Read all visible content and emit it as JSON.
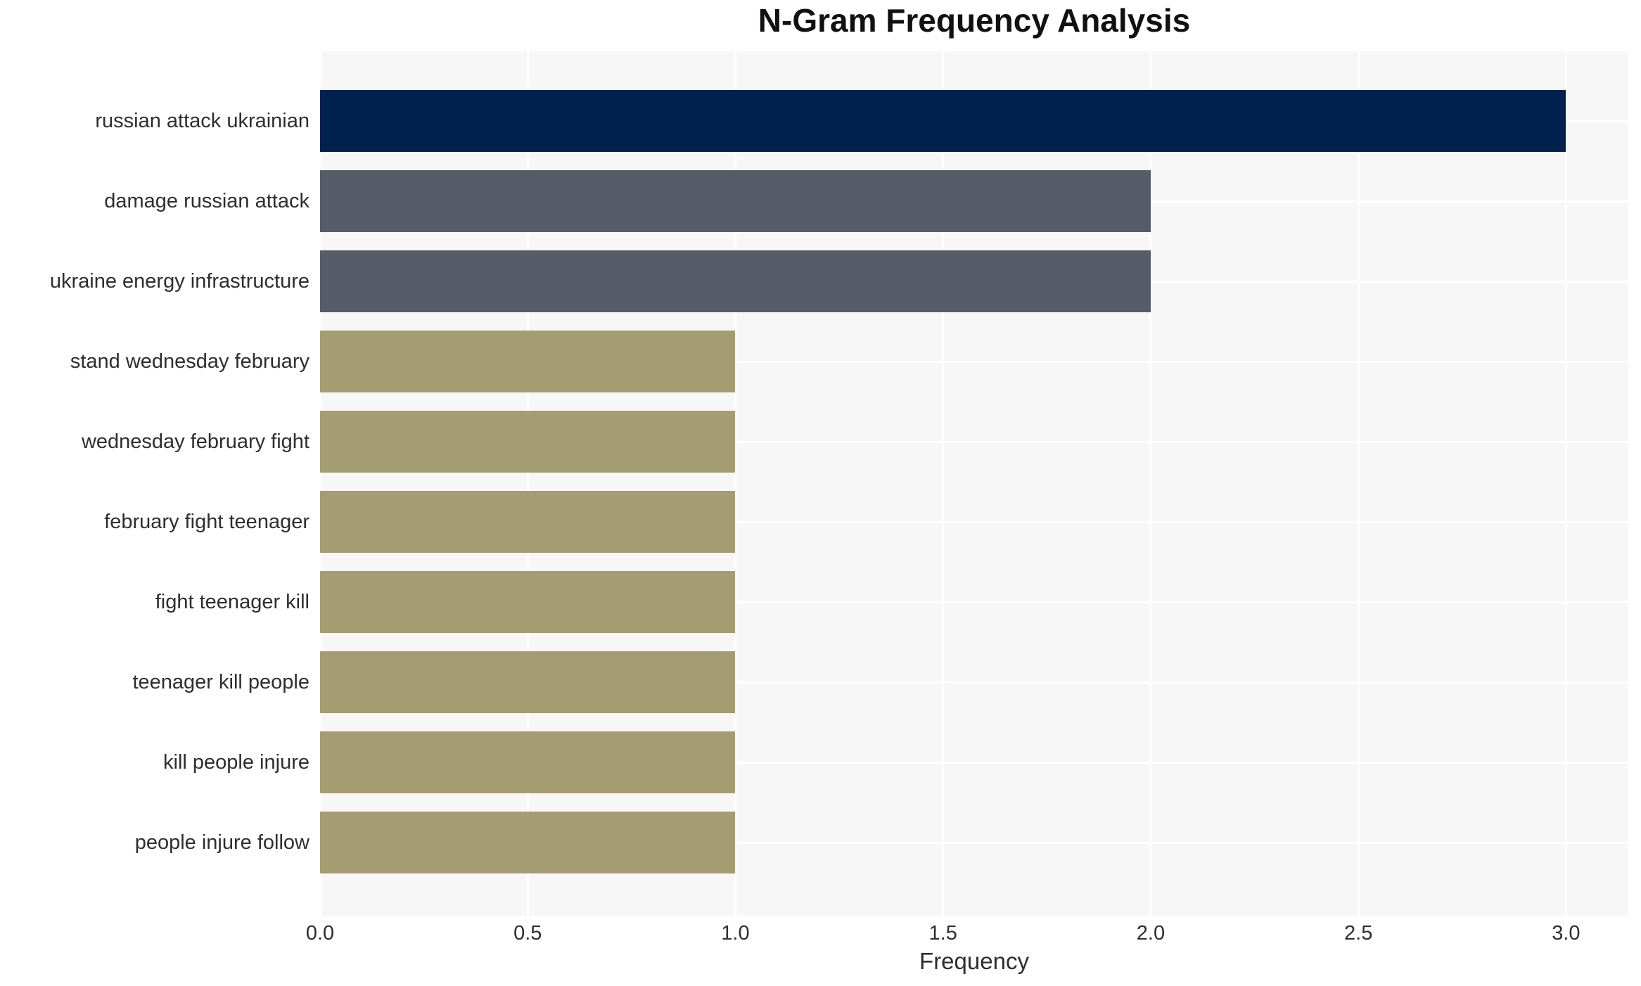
{
  "chart_data": {
    "type": "bar",
    "orientation": "horizontal",
    "title": "N-Gram Frequency Analysis",
    "xlabel": "Frequency",
    "ylabel": "",
    "categories": [
      "russian attack ukrainian",
      "damage russian attack",
      "ukraine energy infrastructure",
      "stand wednesday february",
      "wednesday february fight",
      "february fight teenager",
      "fight teenager kill",
      "teenager kill people",
      "kill people injure",
      "people injure follow"
    ],
    "values": [
      3,
      2,
      2,
      1,
      1,
      1,
      1,
      1,
      1,
      1
    ],
    "bar_colors": [
      "#01224e",
      "#575c6a",
      "#575c6a",
      "#a59c72",
      "#a59c72",
      "#a59c72",
      "#a59c72",
      "#a59c72",
      "#a59c72",
      "#a59c72"
    ],
    "xticks": [
      0.0,
      0.5,
      1.0,
      1.5,
      2.0,
      2.5,
      3.0
    ],
    "xtick_labels": [
      "0.0",
      "0.5",
      "1.0",
      "1.5",
      "2.0",
      "2.5",
      "3.0"
    ],
    "xlim": [
      0,
      3.15
    ],
    "grid": true,
    "legend": false,
    "plot_bg_color": "#f7f7f7",
    "grid_color": "#ffffff",
    "text_color": "#2e2e2e"
  }
}
